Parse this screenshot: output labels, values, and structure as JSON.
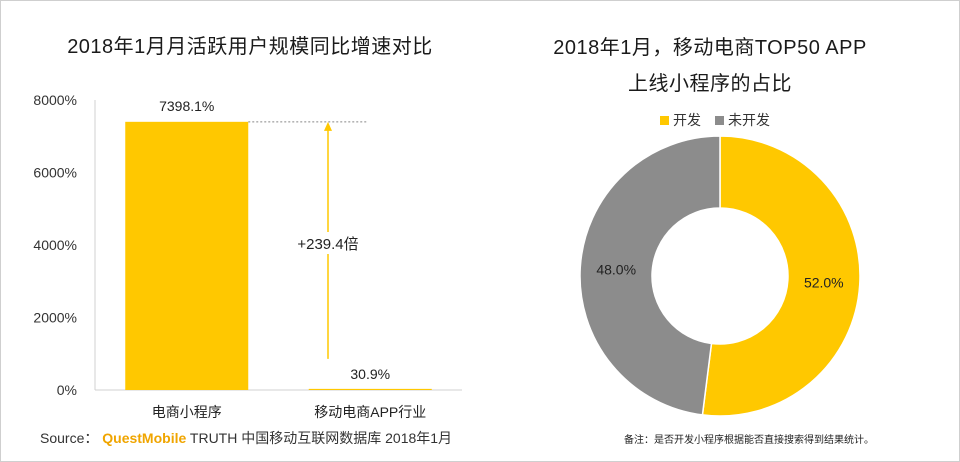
{
  "left_title": "2018年1月月活跃用户规模同比增速对比",
  "right_title_line1": "2018年1月，移动电商TOP50 APP",
  "right_title_line2": "上线小程序的占比",
  "source": {
    "prefix": "Source：",
    "brand": "QuestMobile",
    "rest": " TRUTH 中国移动互联网数据库 2018年1月"
  },
  "note": "备注：是否开发小程序根据能否直接搜索得到结果统计。",
  "colors": {
    "accent": "#FFC800",
    "gray": "#8C8C8C"
  },
  "chart_data": [
    {
      "type": "bar",
      "title": "2018年1月月活跃用户规模同比增速对比",
      "categories": [
        "电商小程序",
        "移动电商APP行业"
      ],
      "values": [
        7398.1,
        30.9
      ],
      "value_labels": [
        "7398.1%",
        "30.9%"
      ],
      "ylim": [
        0,
        8000
      ],
      "yticks": [
        "0%",
        "2000%",
        "4000%",
        "6000%",
        "8000%"
      ],
      "annotation": "+239.4倍",
      "grid": false
    },
    {
      "type": "pie",
      "title": "2018年1月，移动电商TOP50 APP上线小程序的占比",
      "labels": [
        "开发",
        "未开发"
      ],
      "values": [
        52.0,
        48.0
      ],
      "value_labels": [
        "52.0%",
        "48.0%"
      ],
      "legend_position": "top"
    }
  ]
}
